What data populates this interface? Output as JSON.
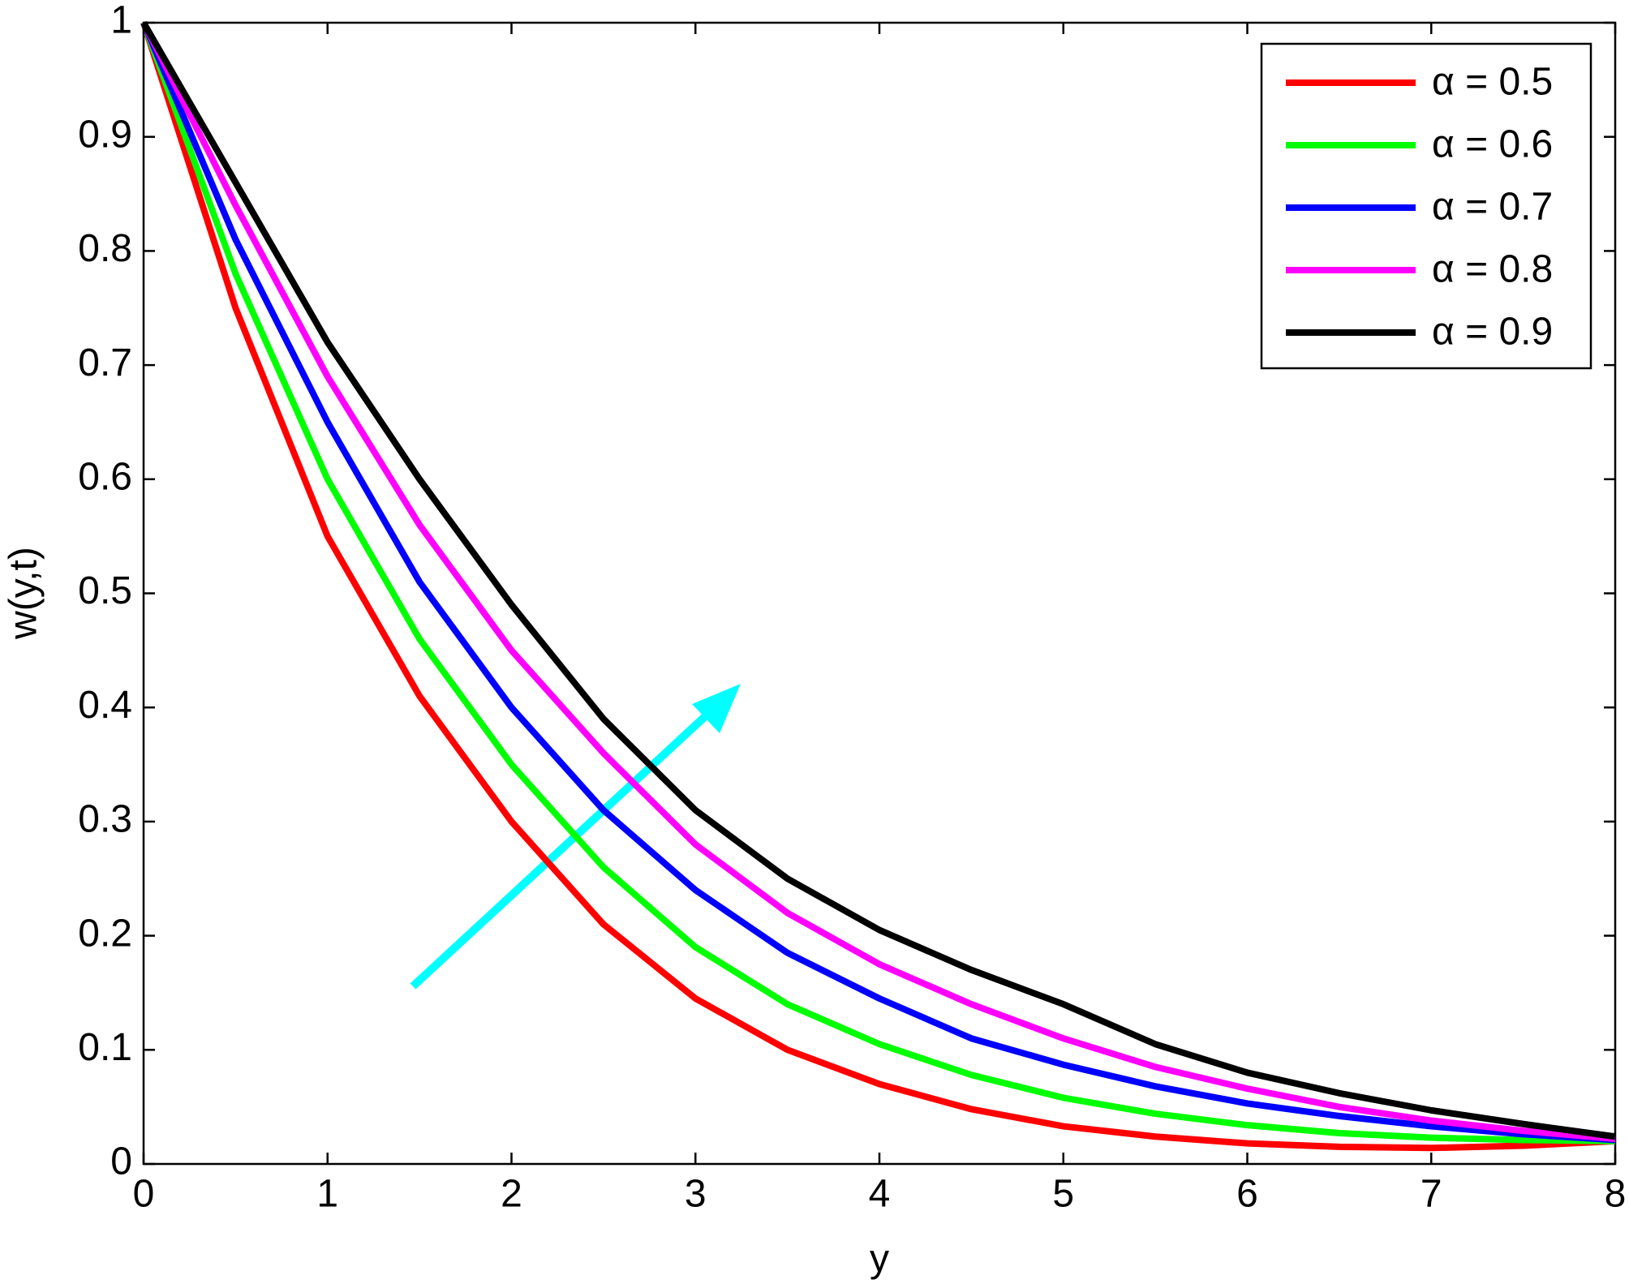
{
  "chart_data": {
    "type": "line",
    "xlabel": "y",
    "ylabel": "w(y,t)",
    "x": [
      0,
      0.5,
      1,
      1.5,
      2,
      2.5,
      3,
      3.5,
      4,
      4.5,
      5,
      5.5,
      6,
      6.5,
      7,
      7.5,
      8
    ],
    "series": [
      {
        "name": "α = 0.5",
        "color": "#ff0000",
        "values": [
          1,
          0.75,
          0.55,
          0.41,
          0.3,
          0.21,
          0.145,
          0.1,
          0.07,
          0.048,
          0.033,
          0.024,
          0.018,
          0.015,
          0.014,
          0.016,
          0.02
        ]
      },
      {
        "name": "α = 0.6",
        "color": "#00ff00",
        "values": [
          1,
          0.78,
          0.6,
          0.46,
          0.35,
          0.26,
          0.19,
          0.14,
          0.105,
          0.078,
          0.058,
          0.044,
          0.034,
          0.027,
          0.023,
          0.021,
          0.02
        ]
      },
      {
        "name": "α = 0.7",
        "color": "#0000ff",
        "values": [
          1,
          0.81,
          0.65,
          0.51,
          0.4,
          0.31,
          0.24,
          0.185,
          0.145,
          0.11,
          0.087,
          0.068,
          0.053,
          0.042,
          0.033,
          0.026,
          0.021
        ]
      },
      {
        "name": "α = 0.8",
        "color": "#ff00ff",
        "values": [
          1,
          0.84,
          0.69,
          0.56,
          0.45,
          0.36,
          0.28,
          0.22,
          0.175,
          0.14,
          0.11,
          0.085,
          0.066,
          0.05,
          0.038,
          0.029,
          0.022
        ]
      },
      {
        "name": "α = 0.9",
        "color": "#000000",
        "values": [
          1,
          0.86,
          0.72,
          0.6,
          0.49,
          0.39,
          0.31,
          0.25,
          0.205,
          0.17,
          0.14,
          0.105,
          0.08,
          0.062,
          0.047,
          0.035,
          0.024
        ]
      }
    ],
    "xlim": [
      0,
      8
    ],
    "xticks": [
      0,
      1,
      2,
      3,
      4,
      5,
      6,
      7,
      8
    ],
    "ylim": [
      0,
      1
    ],
    "yticks": [
      0,
      0.1,
      0.2,
      0.3,
      0.4,
      0.5,
      0.6,
      0.7,
      0.8,
      0.9,
      1
    ],
    "legend": "upper-right"
  }
}
